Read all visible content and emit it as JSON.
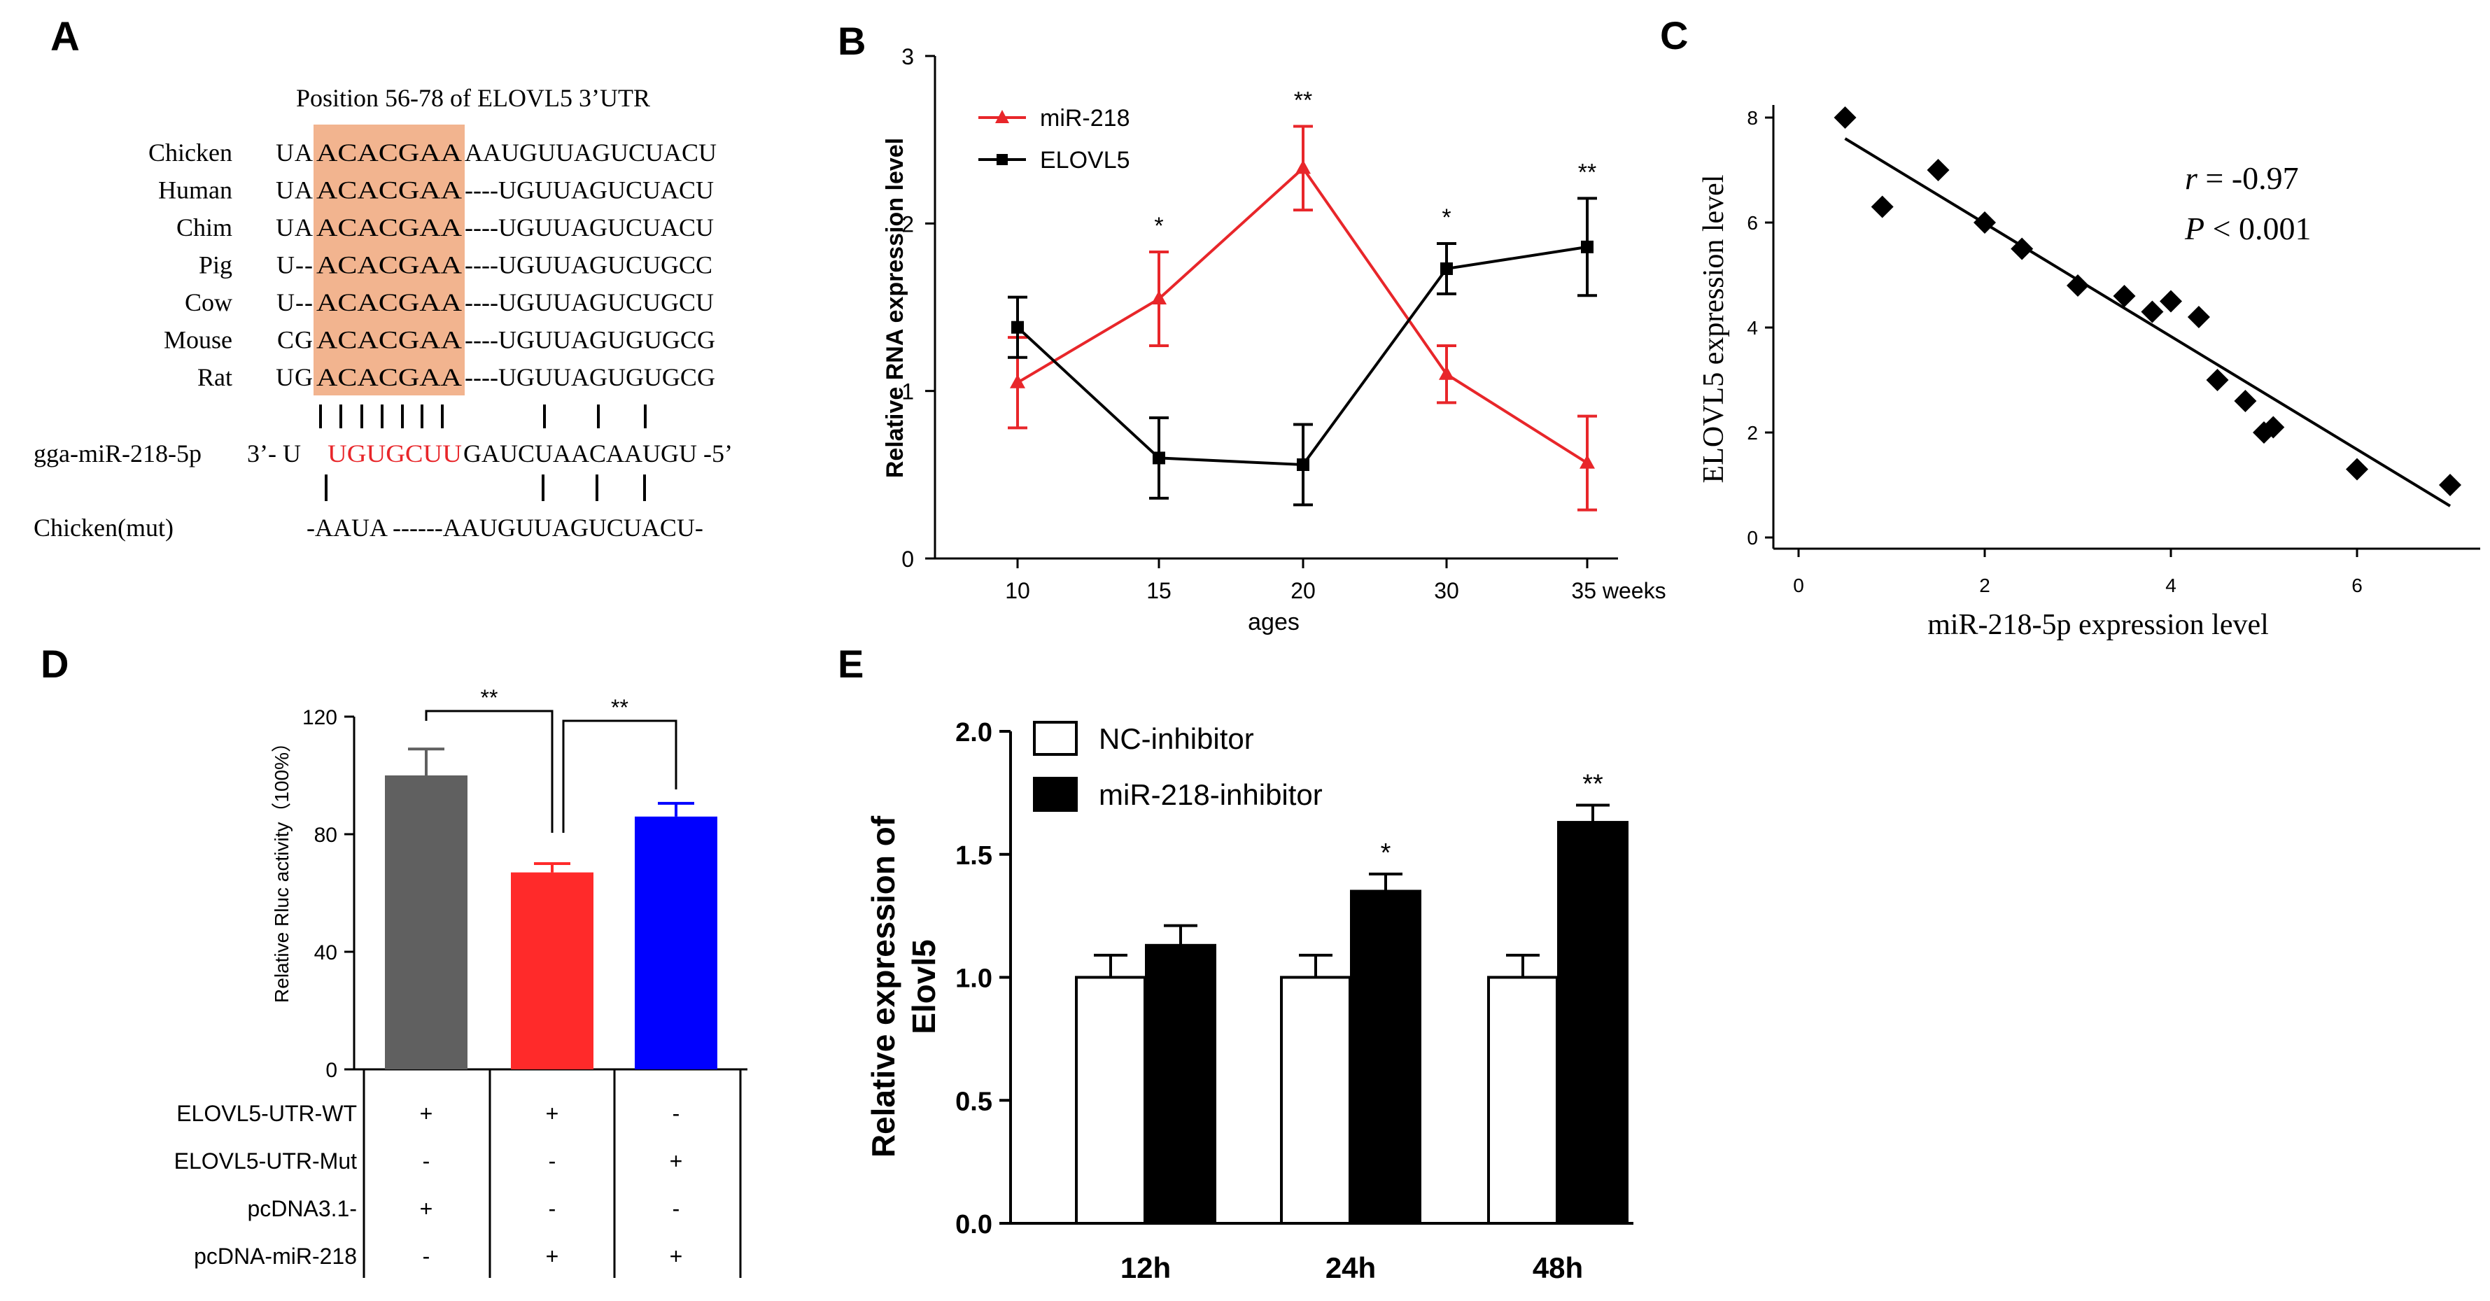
{
  "colors": {
    "red": "#e8262a",
    "black": "#000000",
    "gray": "#606060",
    "bar_red": "#ff2a2a",
    "bar_blue": "#0000ff",
    "highlight": "#f2b48f",
    "seed_red": "#e8262a"
  },
  "panel_a": {
    "letter": "A",
    "title": "Position 56-78 of ELOVL5 3’UTR",
    "species": [
      {
        "name": "Chicken",
        "pre": "UA",
        "seed": "ACACGAA",
        "post": "AAUGUUAGUCUACU"
      },
      {
        "name": "Human",
        "pre": "UA",
        "seed": "ACACGAA",
        "post": "----UGUUAGUCUACU"
      },
      {
        "name": "Chim",
        "pre": "UA",
        "seed": "ACACGAA",
        "post": "----UGUUAGUCUACU"
      },
      {
        "name": "Pig",
        "pre": "U--",
        "seed": "ACACGAA",
        "post": "----UGUUAGUCUGCC"
      },
      {
        "name": "Cow",
        "pre": "U--",
        "seed": "ACACGAA",
        "post": "----UGUUAGUCUGCU"
      },
      {
        "name": "Mouse",
        "pre": "CG",
        "seed": "ACACGAA",
        "post": "----UGUUAGUGUGCG"
      },
      {
        "name": "Rat",
        "pre": "UG",
        "seed": "ACACGAA",
        "post": "----UGUUAGUGUGCG"
      }
    ],
    "mirna_label": "gga-miR-218-5p",
    "mirna_prefix": "3’- U",
    "mirna_seed": "UGUGCUU",
    "mirna_suffix": "GAUCUAACAAUGU -5’",
    "mut_label": "Chicken(mut)",
    "mut_seq": "-AAUA ------AAUGUUAGUCUACU-"
  },
  "chart_data": [
    {
      "panel": "B",
      "type": "line",
      "categories": [
        "10",
        "15",
        "20",
        "30",
        "35 weeks"
      ],
      "series": [
        {
          "name": "miR-218",
          "values": [
            1.05,
            1.55,
            2.33,
            1.1,
            0.57
          ],
          "errors": [
            0.27,
            0.28,
            0.25,
            0.17,
            0.28
          ]
        },
        {
          "name": "ELOVL5",
          "values": [
            1.38,
            0.6,
            0.56,
            1.73,
            1.86
          ],
          "errors": [
            0.18,
            0.24,
            0.24,
            0.15,
            0.29
          ]
        }
      ],
      "significance": [
        "",
        "*",
        "**",
        "*",
        "**"
      ],
      "xlabel": "ages",
      "ylabel": "Relative RNA expression level",
      "ylim": [
        0,
        3
      ],
      "yticks": [
        "0",
        "1",
        "2",
        "3"
      ]
    },
    {
      "panel": "C",
      "type": "scatter",
      "points": [
        [
          0.5,
          8.0
        ],
        [
          0.9,
          6.3
        ],
        [
          1.5,
          7.0
        ],
        [
          2.0,
          6.0
        ],
        [
          2.4,
          5.5
        ],
        [
          3.0,
          4.8
        ],
        [
          3.5,
          4.6
        ],
        [
          3.8,
          4.3
        ],
        [
          4.0,
          4.5
        ],
        [
          4.3,
          4.2
        ],
        [
          4.5,
          3.0
        ],
        [
          4.8,
          2.6
        ],
        [
          5.0,
          2.0
        ],
        [
          5.1,
          2.1
        ],
        [
          6.0,
          1.3
        ],
        [
          7.0,
          1.0
        ]
      ],
      "fit_line": [
        [
          0.5,
          7.6
        ],
        [
          7.0,
          0.6
        ]
      ],
      "xlabel": "miR-218-5p expression level",
      "ylabel": "ELOVL5 expression level",
      "xlim": [
        0,
        7.2
      ],
      "ylim": [
        0,
        8.2
      ],
      "xticks": [
        "0",
        "2",
        "4",
        "6"
      ],
      "yticks": [
        "0",
        "2",
        "4",
        "6",
        "8"
      ],
      "stat_r_label": "r",
      "stat_r_value": " = -0.97",
      "stat_p_label": "P",
      "stat_p_value": " < 0.001"
    },
    {
      "panel": "D",
      "type": "bar",
      "categories": [
        "WT + pcDNA3.1-",
        "WT + pcDNA-miR-218",
        "Mut + pcDNA-miR-218"
      ],
      "values": [
        100,
        67,
        86
      ],
      "errors": [
        9,
        3,
        4.5
      ],
      "ylabel": "Relative Rluc activity（100%）",
      "ylim": [
        0,
        120
      ],
      "yticks": [
        "0",
        "40",
        "80",
        "120"
      ],
      "brackets": [
        "**",
        "**"
      ],
      "conditions": [
        {
          "label": "ELOVL5-UTR-WT",
          "marks": [
            "+",
            "+",
            "-"
          ]
        },
        {
          "label": "ELOVL5-UTR-Mut",
          "marks": [
            "-",
            "-",
            "+"
          ]
        },
        {
          "label": "pcDNA3.1-",
          "marks": [
            "+",
            "-",
            "-"
          ]
        },
        {
          "label": "pcDNA-miR-218",
          "marks": [
            "-",
            "+",
            "+"
          ]
        }
      ]
    },
    {
      "panel": "E",
      "type": "bar",
      "categories": [
        "12h",
        "24h",
        "48h"
      ],
      "series": [
        {
          "name": "NC-inhibitor",
          "values": [
            1.0,
            1.0,
            1.0
          ],
          "errors": [
            0.09,
            0.09,
            0.09
          ]
        },
        {
          "name": "miR-218-inhibitor",
          "values": [
            1.13,
            1.35,
            1.63
          ],
          "errors": [
            0.08,
            0.07,
            0.07
          ]
        }
      ],
      "significance": [
        "",
        "*",
        "**"
      ],
      "ylabel_line1": "Relative expression of",
      "ylabel_line2": "Elovl5",
      "ylim": [
        0,
        2.0
      ],
      "yticks": [
        "0.0",
        "0.5",
        "1.0",
        "1.5",
        "2.0"
      ]
    }
  ],
  "panel_letters": {
    "b": "B",
    "c": "C",
    "d": "D",
    "e": "E"
  }
}
